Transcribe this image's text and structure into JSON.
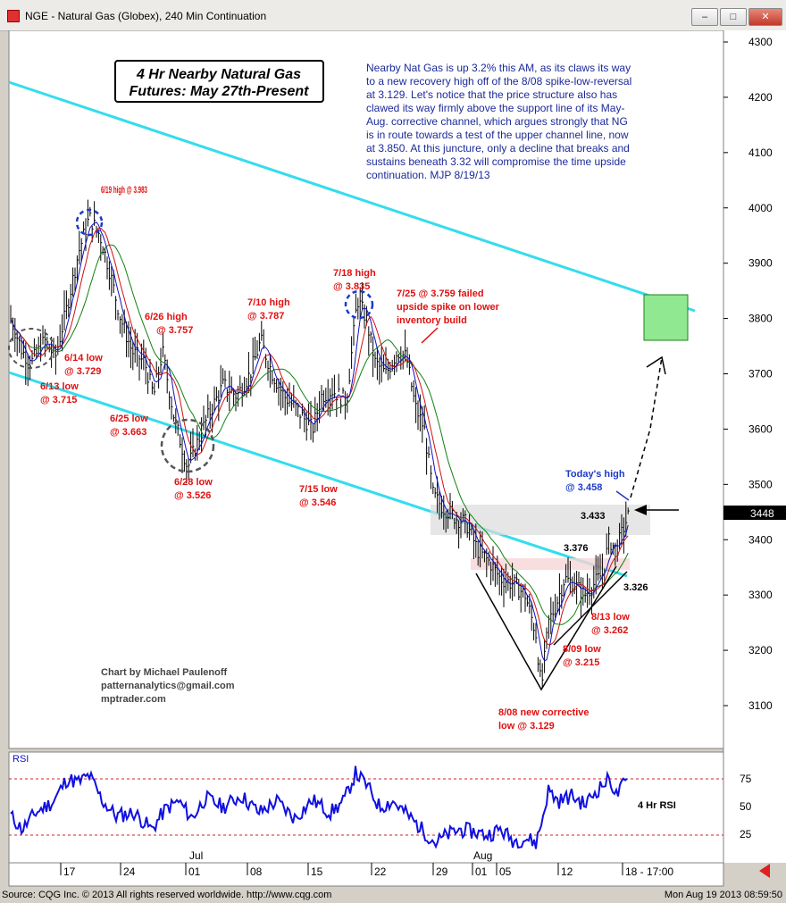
{
  "window": {
    "title": "NGE - Natural Gas (Globex), 240 Min Continuation",
    "min_label": "–",
    "max_label": "□",
    "close_label": "✕"
  },
  "title_box": {
    "line1": "4 Hr Nearby Natural Gas",
    "line2": "Futures: May 27th-Present"
  },
  "commentary": [
    "Nearby Nat Gas is up 3.2% this AM, as its claws its way",
    "to a new recovery high off of the 8/08 spike-low-reversal",
    "at 3.129.  Let's notice that the price structure also has",
    "clawed its way firmly above the support line of its May-",
    "Aug. corrective channel, which argues strongly that NG",
    "is in route towards a test of the upper channel line, now",
    "at 3.850. At this juncture, only a decline that breaks and",
    "sustains beneath 3.32 will compromise the time upside",
    "continuation.  MJP 8/19/13"
  ],
  "credit": [
    "Chart by Michael Paulenoff",
    "patternanalytics@gmail.com",
    "mptrader.com"
  ],
  "rsi": {
    "panel_label": "RSI",
    "series_label": "4 Hr RSI",
    "ticks": [
      "75",
      "50",
      "25"
    ]
  },
  "last_price": "3448",
  "footer": {
    "left": "Source: CQG Inc. © 2013 All rights reserved worldwide. http://www.cqg.com",
    "right": "Mon Aug 19 2013 08:59:50"
  },
  "colors": {
    "bar": "#000000",
    "channel": "#33dded",
    "ma_fast": "#1010c0",
    "ma_mid": "#d01010",
    "ma_slow": "#108010",
    "annotation": "#e01010",
    "today_high": "#1c3ac8",
    "target_box": "#90e890"
  },
  "chart_data": {
    "type": "bar",
    "title": "4 Hr Nearby Natural Gas Futures: May 27th-Present",
    "xlabel": "",
    "ylabel": "",
    "ylim": [
      3.06,
      4.31
    ],
    "y_ticks": [
      "4300",
      "4200",
      "4100",
      "4000",
      "3900",
      "3800",
      "3700",
      "3600",
      "3500",
      "3400",
      "3300",
      "3200",
      "3100"
    ],
    "x_ticks": [
      "17",
      "24",
      "01",
      "08",
      "15",
      "22",
      "29",
      "01",
      "05",
      "12",
      "18 - 17:00"
    ],
    "x_month_labels": [
      "Jul",
      "Aug"
    ],
    "grid": false,
    "key_points": [
      {
        "date": "6/13",
        "value": 3.715,
        "label": "6/13 low @ 3.715"
      },
      {
        "date": "6/14",
        "value": 3.729,
        "label": "6/14 low @ 3.729"
      },
      {
        "date": "6/19",
        "value": 3.983,
        "label": "6/19 high @ 3.983"
      },
      {
        "date": "6/25",
        "value": 3.663,
        "label": "6/25 low @ 3.663"
      },
      {
        "date": "6/26",
        "value": 3.757,
        "label": "6/26 high @ 3.757"
      },
      {
        "date": "6/28",
        "value": 3.526,
        "label": "6/28 low @ 3.526"
      },
      {
        "date": "7/10",
        "value": 3.787,
        "label": "7/10 high @ 3.787"
      },
      {
        "date": "7/15",
        "value": 3.546,
        "label": "7/15 low @ 3.546"
      },
      {
        "date": "7/18",
        "value": 3.835,
        "label": "7/18 high @ 3.835"
      },
      {
        "date": "7/25",
        "value": 3.759,
        "label": "7/25 @ 3.759 failed upside spike on lower inventory build"
      },
      {
        "date": "8/08",
        "value": 3.129,
        "label": "8/08 new corrective low @ 3.129"
      },
      {
        "date": "8/09",
        "value": 3.215,
        "label": "8/09 low @ 3.215"
      },
      {
        "date": "8/13",
        "value": 3.262,
        "label": "8/13 low @ 3.262"
      },
      {
        "date": "8/19",
        "value": 3.458,
        "label": "Today's high @ 3.458"
      }
    ],
    "levels": [
      "3.433",
      "3.376",
      "3.326"
    ],
    "last": 3.448,
    "rsi_ylim": [
      0,
      100
    ],
    "rsi_levels": [
      75,
      50,
      25
    ]
  }
}
